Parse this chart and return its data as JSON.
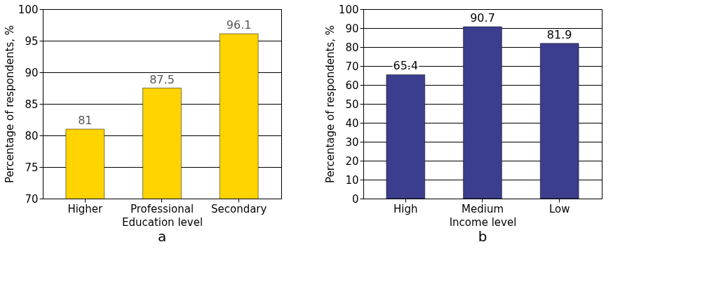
{
  "chart_data": [
    {
      "type": "bar",
      "title": "a",
      "xlabel": "Education level",
      "ylabel": "Percentage of respondents, %",
      "categories": [
        "Higher",
        "Professional",
        "Secondary"
      ],
      "values": [
        81,
        87.5,
        96.1
      ],
      "color": "#ffd400",
      "ylim": [
        70,
        100
      ],
      "yticks": [
        70,
        75,
        80,
        85,
        90,
        95,
        100
      ],
      "grid": "y",
      "data_labels": true
    },
    {
      "type": "bar",
      "title": "b",
      "xlabel": "Income level",
      "ylabel": "Percentage of respondents, %",
      "categories": [
        "High",
        "Medium",
        "Low"
      ],
      "values": [
        65.4,
        90.7,
        81.9
      ],
      "color": "#3b3d8e",
      "ylim": [
        0,
        100
      ],
      "yticks": [
        0,
        10,
        20,
        30,
        40,
        50,
        60,
        70,
        80,
        90,
        100
      ],
      "grid": "y",
      "data_labels": true
    }
  ]
}
